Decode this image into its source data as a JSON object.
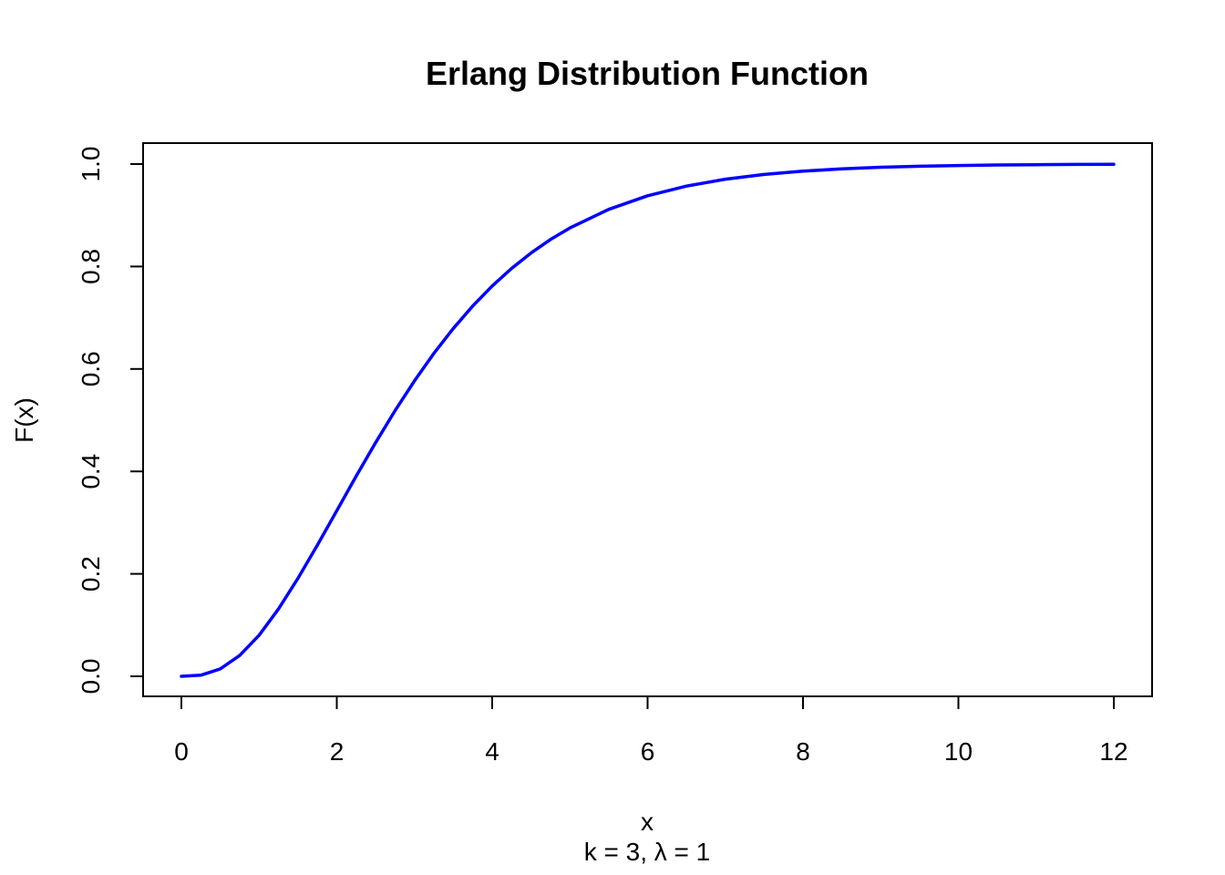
{
  "chart_data": {
    "type": "line",
    "title": "Erlang Distribution Function",
    "xlabel": "x",
    "ylabel": "F(x)",
    "subtitle": "k = 3,  λ = 1",
    "xlim": [
      0,
      12
    ],
    "ylim": [
      0,
      1
    ],
    "grid": false,
    "line_color": "#0000ff",
    "x_ticks": [
      0,
      2,
      4,
      6,
      8,
      10,
      12
    ],
    "x_tick_labels": [
      "0",
      "2",
      "4",
      "6",
      "8",
      "10",
      "12"
    ],
    "y_ticks": [
      0,
      0.2,
      0.4,
      0.6,
      0.8,
      1.0
    ],
    "y_tick_labels": [
      "0.0",
      "0.2",
      "0.4",
      "0.6",
      "0.8",
      "1.0"
    ],
    "series": [
      {
        "x": [
          0,
          0.25,
          0.5,
          0.75,
          1,
          1.25,
          1.5,
          1.75,
          2,
          2.25,
          2.5,
          2.75,
          3,
          3.25,
          3.5,
          3.75,
          4,
          4.25,
          4.5,
          4.75,
          5,
          5.5,
          6,
          6.5,
          7,
          7.5,
          8,
          8.5,
          9,
          9.5,
          10,
          10.5,
          11,
          11.5,
          12
        ],
        "values": [
          0,
          0.0022,
          0.0144,
          0.0405,
          0.0803,
          0.1315,
          0.1912,
          0.256,
          0.3233,
          0.3907,
          0.4562,
          0.5185,
          0.5768,
          0.6306,
          0.6792,
          0.7229,
          0.7619,
          0.7963,
          0.8264,
          0.8527,
          0.8753,
          0.9116,
          0.938,
          0.957,
          0.9704,
          0.9797,
          0.9862,
          0.9907,
          0.9938,
          0.9958,
          0.9972,
          0.9982,
          0.9988,
          0.9992,
          0.9995
        ]
      }
    ]
  }
}
